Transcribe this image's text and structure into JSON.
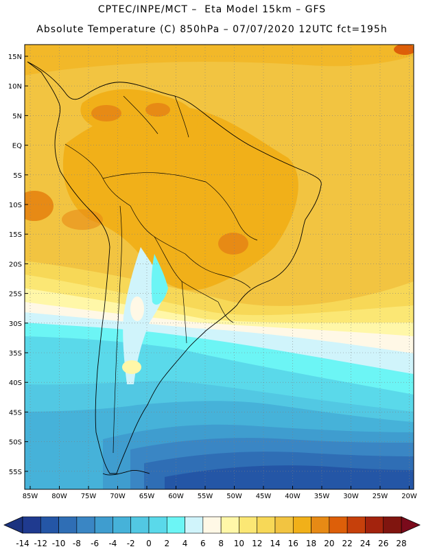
{
  "header": {
    "line1": "CPTEC/INPE/MCT –  Eta Model 15km – GFS",
    "line2": "Absolute Temperature (C) 850hPa – 07/07/2020 12UTC fct=195h"
  },
  "axes": {
    "lat_labels": [
      "15N",
      "10N",
      "5N",
      "EQ",
      "5S",
      "10S",
      "15S",
      "20S",
      "25S",
      "30S",
      "35S",
      "40S",
      "45S",
      "50S",
      "55S"
    ],
    "lon_labels": [
      "85W",
      "80W",
      "75W",
      "70W",
      "65W",
      "60W",
      "55W",
      "50W",
      "45W",
      "40W",
      "35W",
      "30W",
      "25W",
      "20W"
    ]
  },
  "colorbar": {
    "labels": [
      "-14",
      "-12",
      "-10",
      "-8",
      "-6",
      "-4",
      "-2",
      "0",
      "2",
      "4",
      "6",
      "8",
      "10",
      "12",
      "14",
      "16",
      "18",
      "20",
      "22",
      "24",
      "26",
      "28"
    ],
    "colors": [
      "#1f3a8f",
      "#2456a6",
      "#2f6eb5",
      "#3a86c4",
      "#3f9dcf",
      "#46b2d9",
      "#52c8e3",
      "#5ad9ea",
      "#6cf5f5",
      "#d0f4fb",
      "#fff8e6",
      "#fff7a8",
      "#fbe774",
      "#f7d857",
      "#f2c441",
      "#f1b019",
      "#e78a15",
      "#dd5f09",
      "#c6400b",
      "#a3230d",
      "#80150f"
    ],
    "under_color": "#1b3380",
    "over_color": "#7a0a1b"
  }
}
